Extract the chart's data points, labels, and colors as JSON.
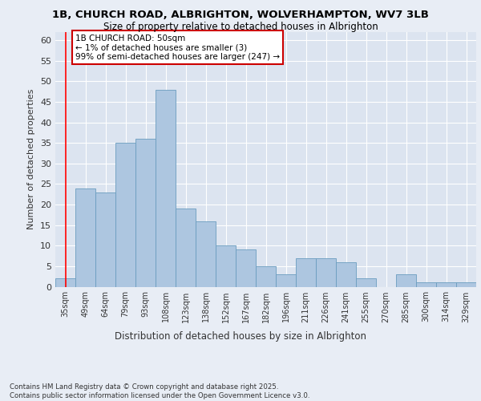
{
  "title_line1": "1B, CHURCH ROAD, ALBRIGHTON, WOLVERHAMPTON, WV7 3LB",
  "title_line2": "Size of property relative to detached houses in Albrighton",
  "xlabel": "Distribution of detached houses by size in Albrighton",
  "ylabel": "Number of detached properties",
  "categories": [
    "35sqm",
    "49sqm",
    "64sqm",
    "79sqm",
    "93sqm",
    "108sqm",
    "123sqm",
    "138sqm",
    "152sqm",
    "167sqm",
    "182sqm",
    "196sqm",
    "211sqm",
    "226sqm",
    "241sqm",
    "255sqm",
    "270sqm",
    "285sqm",
    "300sqm",
    "314sqm",
    "329sqm"
  ],
  "values": [
    2,
    24,
    23,
    35,
    36,
    48,
    19,
    16,
    10,
    9,
    5,
    3,
    7,
    7,
    6,
    2,
    0,
    3,
    1,
    1,
    1
  ],
  "bar_color": "#adc6e0",
  "bar_edge_color": "#6a9cbf",
  "annotation_text": "1B CHURCH ROAD: 50sqm\n← 1% of detached houses are smaller (3)\n99% of semi-detached houses are larger (247) →",
  "annotation_box_color": "#ffffff",
  "annotation_box_edge_color": "#cc0000",
  "bg_color": "#e8edf5",
  "plot_bg_color": "#dce4f0",
  "grid_color": "#ffffff",
  "footer_text": "Contains HM Land Registry data © Crown copyright and database right 2025.\nContains public sector information licensed under the Open Government Licence v3.0.",
  "ylim": [
    0,
    62
  ],
  "yticks": [
    0,
    5,
    10,
    15,
    20,
    25,
    30,
    35,
    40,
    45,
    50,
    55,
    60
  ]
}
